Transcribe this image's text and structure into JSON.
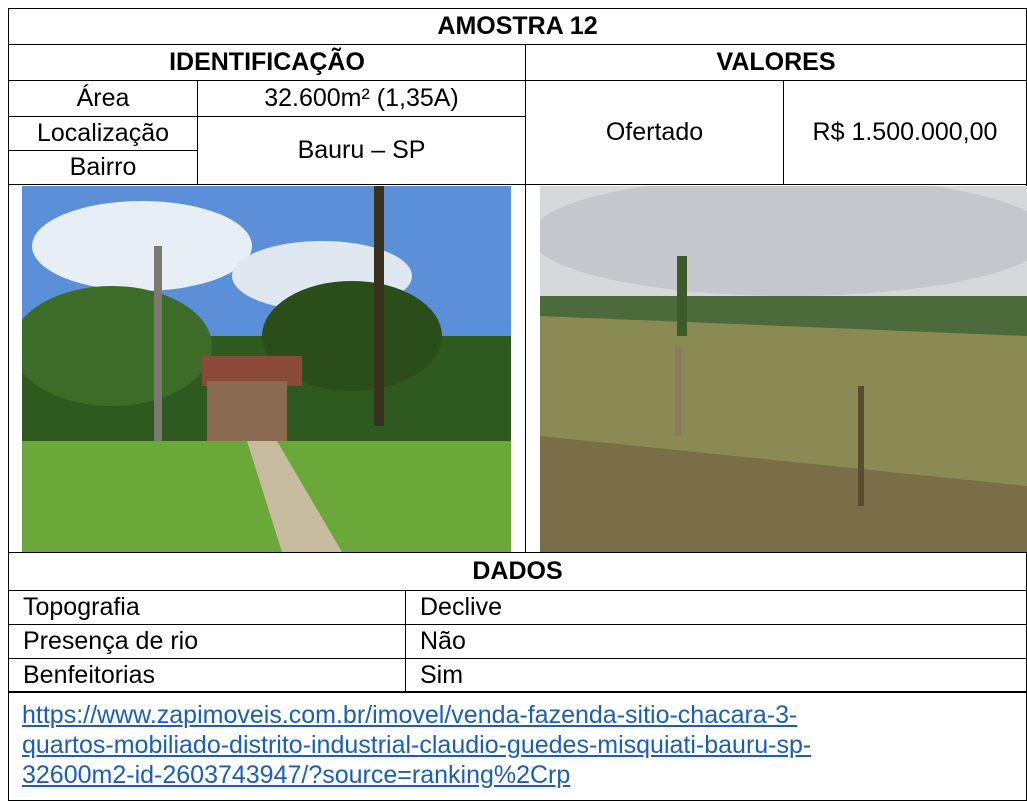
{
  "header": {
    "title": "AMOSTRA 12"
  },
  "identificacao": {
    "heading": "IDENTIFICAÇÃO",
    "area_label": "Área",
    "area_value": "32.600m² (1,35A)",
    "localizacao_label": "Localização",
    "bairro_label": "Bairro",
    "local_value": "Bauru – SP"
  },
  "valores": {
    "heading": "VALORES",
    "label": "Ofertado",
    "value": "R$ 1.500.000,00"
  },
  "dados": {
    "heading": "DADOS",
    "rows": [
      [
        "Topografia",
        "Declive"
      ],
      [
        "Presença de rio",
        "Não"
      ],
      [
        "Benfeitorias",
        "Sim"
      ]
    ]
  },
  "link": {
    "lines": [
      "https://www.zapimoveis.com.br/imovel/venda-fazenda-sitio-chacara-3-",
      "quartos-mobiliado-distrito-industrial-claudio-guedes-misquiati-bauru-sp-",
      "32600m2-id-2603743947/?source=ranking%2Crp"
    ]
  }
}
